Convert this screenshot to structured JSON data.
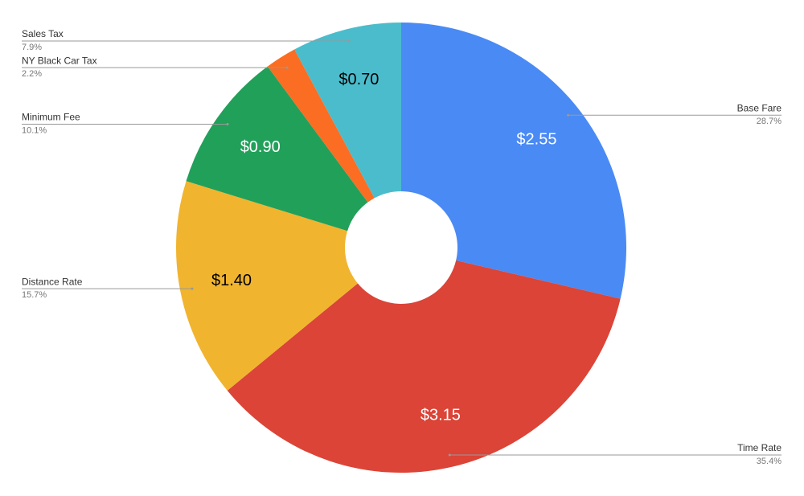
{
  "chart_data": {
    "type": "donut",
    "categories": [
      "Base Fare",
      "Time Rate",
      "Distance Rate",
      "Minimum Fee",
      "NY Black Car Tax",
      "Sales Tax"
    ],
    "values": [
      2.55,
      3.15,
      1.4,
      0.9,
      0.2,
      0.7
    ],
    "value_labels": [
      "$2.55",
      "$3.15",
      "$1.40",
      "$0.90",
      null,
      "$0.70"
    ],
    "percentage_labels": [
      "28.7%",
      "35.4%",
      "15.7%",
      "10.1%",
      "2.2%",
      "7.9%"
    ],
    "colors": [
      "#4a8af4",
      "#db4437",
      "#f1b42f",
      "#21a05a",
      "#fb6d22",
      "#4bbccb"
    ],
    "value_label_colors": [
      "#ffffff",
      "#ffffff",
      "#000000",
      "#ffffff",
      "#ffffff",
      "#000000"
    ]
  }
}
